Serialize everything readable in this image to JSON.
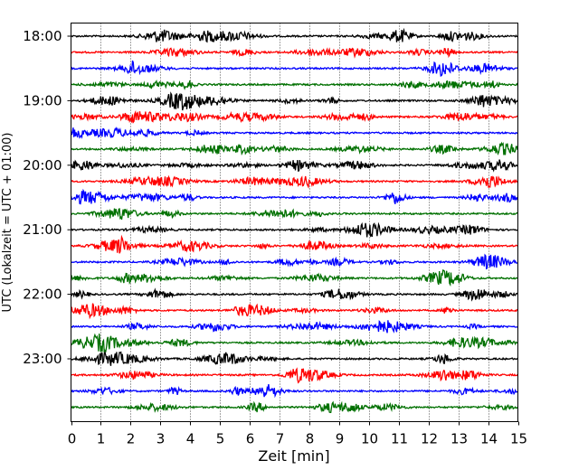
{
  "chart_data": {
    "type": "line",
    "title": "",
    "xlabel": "Zeit  [min]",
    "ylabel": "UTC (Lokalzeit = UTC + 01:00)",
    "xlim": [
      0,
      15
    ],
    "xticks": [
      "0",
      "1",
      "2",
      "3",
      "4",
      "5",
      "6",
      "7",
      "8",
      "9",
      "10",
      "11",
      "12",
      "13",
      "14",
      "15"
    ],
    "yticks": [
      "18:00",
      "19:00",
      "20:00",
      "21:00",
      "22:00",
      "23:00"
    ],
    "x_grid": true,
    "trace_interval_min": 15,
    "trace_colors": [
      "#000000",
      "#ff0000",
      "#0000ff",
      "#007000"
    ],
    "traces": [
      {
        "start": "18:00",
        "color": "#000000"
      },
      {
        "start": "18:15",
        "color": "#ff0000"
      },
      {
        "start": "18:30",
        "color": "#0000ff"
      },
      {
        "start": "18:45",
        "color": "#007000"
      },
      {
        "start": "19:00",
        "color": "#000000"
      },
      {
        "start": "19:15",
        "color": "#ff0000"
      },
      {
        "start": "19:30",
        "color": "#0000ff"
      },
      {
        "start": "19:45",
        "color": "#007000"
      },
      {
        "start": "20:00",
        "color": "#000000"
      },
      {
        "start": "20:15",
        "color": "#ff0000"
      },
      {
        "start": "20:30",
        "color": "#0000ff"
      },
      {
        "start": "20:45",
        "color": "#007000"
      },
      {
        "start": "21:00",
        "color": "#000000"
      },
      {
        "start": "21:15",
        "color": "#ff0000"
      },
      {
        "start": "21:30",
        "color": "#0000ff"
      },
      {
        "start": "21:45",
        "color": "#007000"
      },
      {
        "start": "22:00",
        "color": "#000000"
      },
      {
        "start": "22:15",
        "color": "#ff0000"
      },
      {
        "start": "22:30",
        "color": "#0000ff"
      },
      {
        "start": "22:45",
        "color": "#007000"
      },
      {
        "start": "23:00",
        "color": "#000000"
      },
      {
        "start": "23:15",
        "color": "#ff0000"
      },
      {
        "start": "23:30",
        "color": "#0000ff"
      },
      {
        "start": "23:45",
        "color": "#007000"
      }
    ]
  }
}
